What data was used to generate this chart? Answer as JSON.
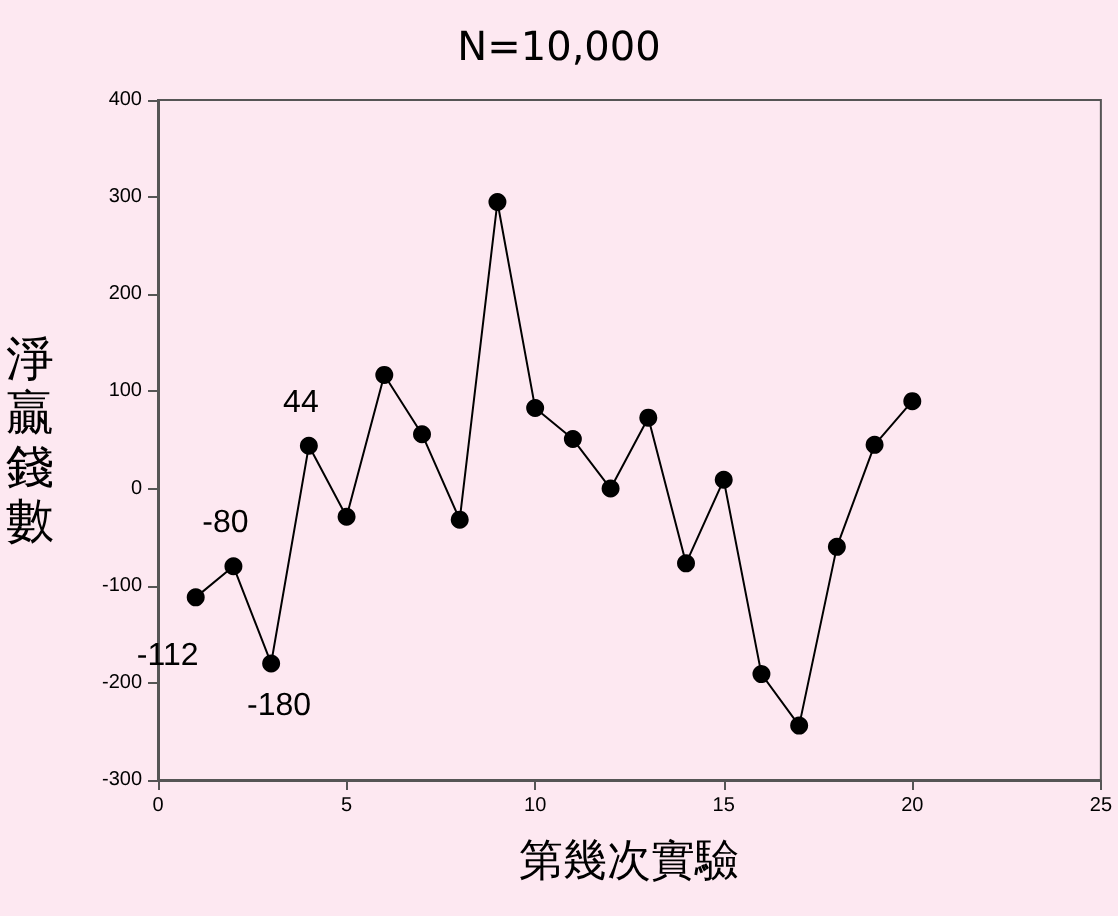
{
  "chart_data": {
    "type": "line",
    "title": "N=10,000",
    "xlabel": "第幾次實驗",
    "ylabel": "淨贏錢數",
    "x": [
      1,
      2,
      3,
      4,
      5,
      6,
      7,
      8,
      9,
      10,
      11,
      12,
      13,
      14,
      15,
      16,
      17,
      18,
      19,
      20
    ],
    "values": [
      -112,
      -80,
      -180,
      44,
      -29,
      117,
      56,
      -32,
      295,
      83,
      51,
      0,
      73,
      -77,
      9,
      -191,
      -244,
      -60,
      45,
      90
    ],
    "value_labels": [
      "-112",
      "-80",
      "-180",
      "44",
      null,
      null,
      null,
      null,
      null,
      null,
      null,
      null,
      null,
      null,
      null,
      null,
      null,
      null,
      null,
      null
    ],
    "color": "#000000",
    "marker": "circle",
    "line_style": "solid",
    "xlim": [
      0,
      25
    ],
    "xticks": [
      0,
      5,
      10,
      15,
      20,
      25
    ],
    "ylim": [
      -300,
      400
    ],
    "yticks": [
      -300,
      -200,
      -100,
      0,
      100,
      200,
      300,
      400
    ],
    "grid": false
  }
}
